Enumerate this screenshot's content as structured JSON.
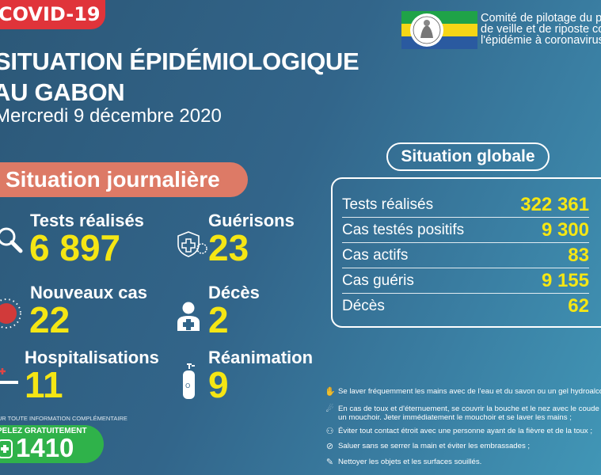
{
  "header": {
    "tag": "COVID-19",
    "title_line1": "SITUATION ÉPIDÉMIOLOGIQUE",
    "title_line2": "AU GABON",
    "date": "Mercredi 9 décembre 2020",
    "committee": [
      "Comité de pilotage du plan",
      "de veille et de riposte contre",
      "l'épidémie à coronavirus"
    ]
  },
  "daily": {
    "title": "Situation journalière",
    "stats": [
      {
        "label": "Tests réalisés",
        "value": "6 897",
        "icon": "magnifier-icon"
      },
      {
        "label": "Guérisons",
        "value": "23",
        "icon": "shield-cross-icon"
      },
      {
        "label": "Nouveaux cas",
        "value": "22",
        "icon": "virus-icon"
      },
      {
        "label": "Décès",
        "value": "2",
        "icon": "person-cross-icon"
      },
      {
        "label": "Hospitalisations",
        "value": "11",
        "icon": "hospital-bed-icon"
      },
      {
        "label": "Réanimation",
        "value": "9",
        "icon": "oxygen-tank-icon"
      }
    ]
  },
  "global": {
    "title": "Situation globale",
    "rows": [
      {
        "label": "Tests réalisés",
        "value": "322 361"
      },
      {
        "label": "Cas testés positifs",
        "value": "9 300"
      },
      {
        "label": "Cas actifs",
        "value": "83"
      },
      {
        "label": "Cas guéris",
        "value": "9 155"
      },
      {
        "label": "Décès",
        "value": "62"
      }
    ]
  },
  "advice": [
    "Se laver fréquemment les mains avec de l'eau et du savon ou un gel hydroalcoolique",
    "En cas de toux et d'éternuement, se couvrir la bouche et le nez avec le coude fléchi ou",
    "un mouchoir. Jeter immédiatement le mouchoir et se laver les mains ;",
    "Éviter tout contact étroit avec une personne ayant de la fièvre et de la toux ;",
    "Saluer sans se serrer la main et éviter les embrassades ;",
    "Nettoyer les objets et les surfaces souillés."
  ],
  "hotline": {
    "info": "POUR TOUTE INFORMATION COMPLÉMENTAIRE",
    "call": "APPELEZ GRATUITEMENT",
    "number": "1410"
  },
  "colors": {
    "accent_yellow": "#f5e614",
    "tag_red": "#e0343a",
    "pill_salmon": "#dd7a66",
    "hotline_green": "#2fb24a"
  }
}
